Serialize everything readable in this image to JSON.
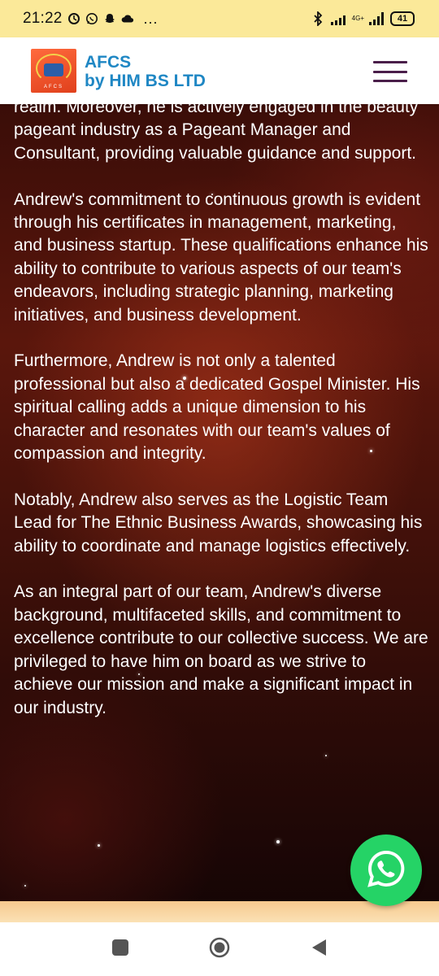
{
  "status_bar": {
    "time": "21:22",
    "icons": [
      "alarm-icon",
      "whatsapp-icon",
      "snapchat-icon",
      "cloud-icon"
    ],
    "more": "...",
    "network": "4G+",
    "battery": "41"
  },
  "header": {
    "logo_text": "AFCS",
    "brand_line1": "AFCS",
    "brand_line2": "by HIM BS LTD",
    "menu_icon": "hamburger-icon"
  },
  "content": {
    "paragraphs": [
      "realm. Moreover, he is actively engaged in the beauty pageant industry as a Pageant Manager and Consultant, providing valuable guidance and support.",
      "Andrew's commitment to continuous growth is evident through his certificates in management, marketing, and business startup. These qualifications enhance his ability to contribute to various aspects of our team's endeavors, including strategic planning, marketing initiatives, and business development.",
      "Furthermore, Andrew is not only a talented professional but also a dedicated Gospel Minister. His spiritual calling adds a unique dimension to his character and resonates with our team's values of compassion and integrity.",
      "Notably, Andrew also serves as the Logistic Team Lead for The Ethnic Business Awards, showcasing his ability to coordinate and manage logistics effectively.",
      "As an integral part of our team, Andrew's diverse background, multifaceted skills, and commitment to excellence contribute to our collective success. We are privileged to have him on board as we strive to achieve our mission and make a significant impact in our industry."
    ]
  },
  "colors": {
    "status_bar_bg": "#fbe999",
    "brand": "#1f87c4",
    "menu": "#4a1e4a",
    "whatsapp": "#25d366"
  },
  "nav": {
    "recents": "square-icon",
    "home": "circle-icon",
    "back": "triangle-back-icon"
  }
}
